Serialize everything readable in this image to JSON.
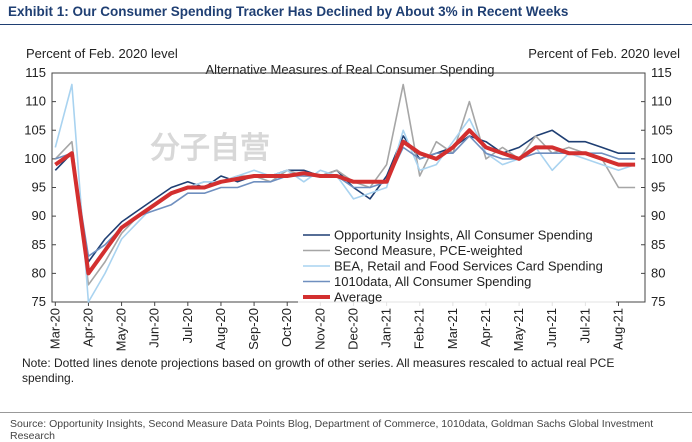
{
  "chart_data": {
    "type": "line",
    "title": "Exhibit 1: Our Consumer Spending Tracker Has Declined by About 3% in Recent Weeks",
    "subtitle": "Alternative Measures of Real Consumer Spending",
    "ylabel": "Percent of Feb. 2020 level",
    "y2label": "Percent of Feb. 2020 level",
    "watermark": "分子自营",
    "note": "Note: Dotted lines denote projections based on growth of other series. All measures rescaled to actual real PCE spending.",
    "source": "Source: Opportunity Insights, Second Measure Data Points Blog, Department of Commerce, 1010data, Goldman Sachs Global Investment Research",
    "xlim": [
      -0.1,
      17.8
    ],
    "xticks": [
      {
        "value": 0,
        "label": "Mar-20"
      },
      {
        "value": 1,
        "label": "Apr-20"
      },
      {
        "value": 2,
        "label": "May-20"
      },
      {
        "value": 3,
        "label": "Jun-20"
      },
      {
        "value": 4,
        "label": "Jul-20"
      },
      {
        "value": 5,
        "label": "Aug-20"
      },
      {
        "value": 6,
        "label": "Sep-20"
      },
      {
        "value": 7,
        "label": "Oct-20"
      },
      {
        "value": 8,
        "label": "Nov-20"
      },
      {
        "value": 9,
        "label": "Dec-20"
      },
      {
        "value": 10,
        "label": "Jan-21"
      },
      {
        "value": 11,
        "label": "Feb-21"
      },
      {
        "value": 12,
        "label": "Mar-21"
      },
      {
        "value": 13,
        "label": "Apr-21"
      },
      {
        "value": 14,
        "label": "May-21"
      },
      {
        "value": 15,
        "label": "Jun-21"
      },
      {
        "value": 16,
        "label": "Jul-21"
      },
      {
        "value": 17,
        "label": "Aug-21"
      }
    ],
    "ylim": [
      75,
      115
    ],
    "yticks": [
      75,
      80,
      85,
      90,
      95,
      100,
      105,
      110,
      115
    ],
    "y2lim": [
      75,
      115
    ],
    "y2ticks": [
      75,
      80,
      85,
      90,
      95,
      100,
      105,
      110,
      115
    ],
    "x": [
      0,
      0.5,
      1,
      1.5,
      2,
      2.5,
      3,
      3.5,
      4,
      4.5,
      5,
      5.5,
      6,
      6.5,
      7,
      7.5,
      8,
      8.5,
      9,
      9.5,
      10,
      10.5,
      11,
      11.5,
      12,
      12.5,
      13,
      13.5,
      14,
      14.5,
      15,
      15.5,
      16,
      16.5,
      17,
      17.5
    ],
    "series": [
      {
        "name": "Opportunity Insights, All Consumer Spending",
        "color": "#1f3f73",
        "width": 1.6,
        "values": [
          98,
          101,
          82,
          86,
          89,
          91,
          93,
          95,
          96,
          95,
          97,
          96,
          97,
          97,
          98,
          98,
          97,
          98,
          95,
          93,
          97,
          104,
          100,
          101,
          102,
          104,
          103,
          101,
          102,
          104,
          105,
          103,
          103,
          102,
          101,
          101
        ]
      },
      {
        "name": "Second Measure, PCE-weighted",
        "color": "#a6a6a6",
        "width": 1.6,
        "values": [
          100,
          103,
          78,
          82,
          87,
          90,
          92,
          94,
          95,
          96,
          96,
          97,
          97,
          96,
          98,
          97,
          97,
          98,
          96,
          95,
          99,
          113,
          97,
          103,
          101,
          110,
          100,
          102,
          100,
          104,
          101,
          102,
          101,
          100,
          95,
          95
        ]
      },
      {
        "name": "BEA, Retail and Food Services Card Spending",
        "color": "#a9d3f0",
        "width": 1.6,
        "values": [
          102,
          113,
          75,
          80,
          86,
          89,
          92,
          94,
          95,
          96,
          96,
          97,
          98,
          97,
          98,
          96,
          98,
          97,
          93,
          94,
          95,
          105,
          98,
          99,
          103,
          107,
          101,
          99,
          100,
          102,
          98,
          101,
          100,
          99,
          98,
          99
        ]
      },
      {
        "name": "1010data, All Consumer Spending",
        "color": "#6f8fbf",
        "width": 1.6,
        "values": [
          100,
          101,
          83,
          85,
          88,
          90,
          91,
          92,
          94,
          94,
          95,
          95,
          96,
          96,
          97,
          97,
          97,
          97,
          95,
          95,
          96,
          102,
          100,
          101,
          101,
          104,
          101,
          100,
          100,
          101,
          101,
          101,
          101,
          101,
          100,
          100
        ]
      },
      {
        "name": "Average",
        "color": "#d32f2f",
        "width": 4,
        "values": [
          99,
          101,
          80,
          84,
          88,
          90,
          92,
          94,
          95,
          95,
          96,
          96.5,
          97,
          97,
          97,
          97.5,
          97,
          97,
          96,
          96,
          96,
          103,
          101,
          100,
          102,
          105,
          102,
          101,
          100,
          102,
          102,
          101,
          101,
          100,
          99,
          99
        ]
      }
    ]
  }
}
